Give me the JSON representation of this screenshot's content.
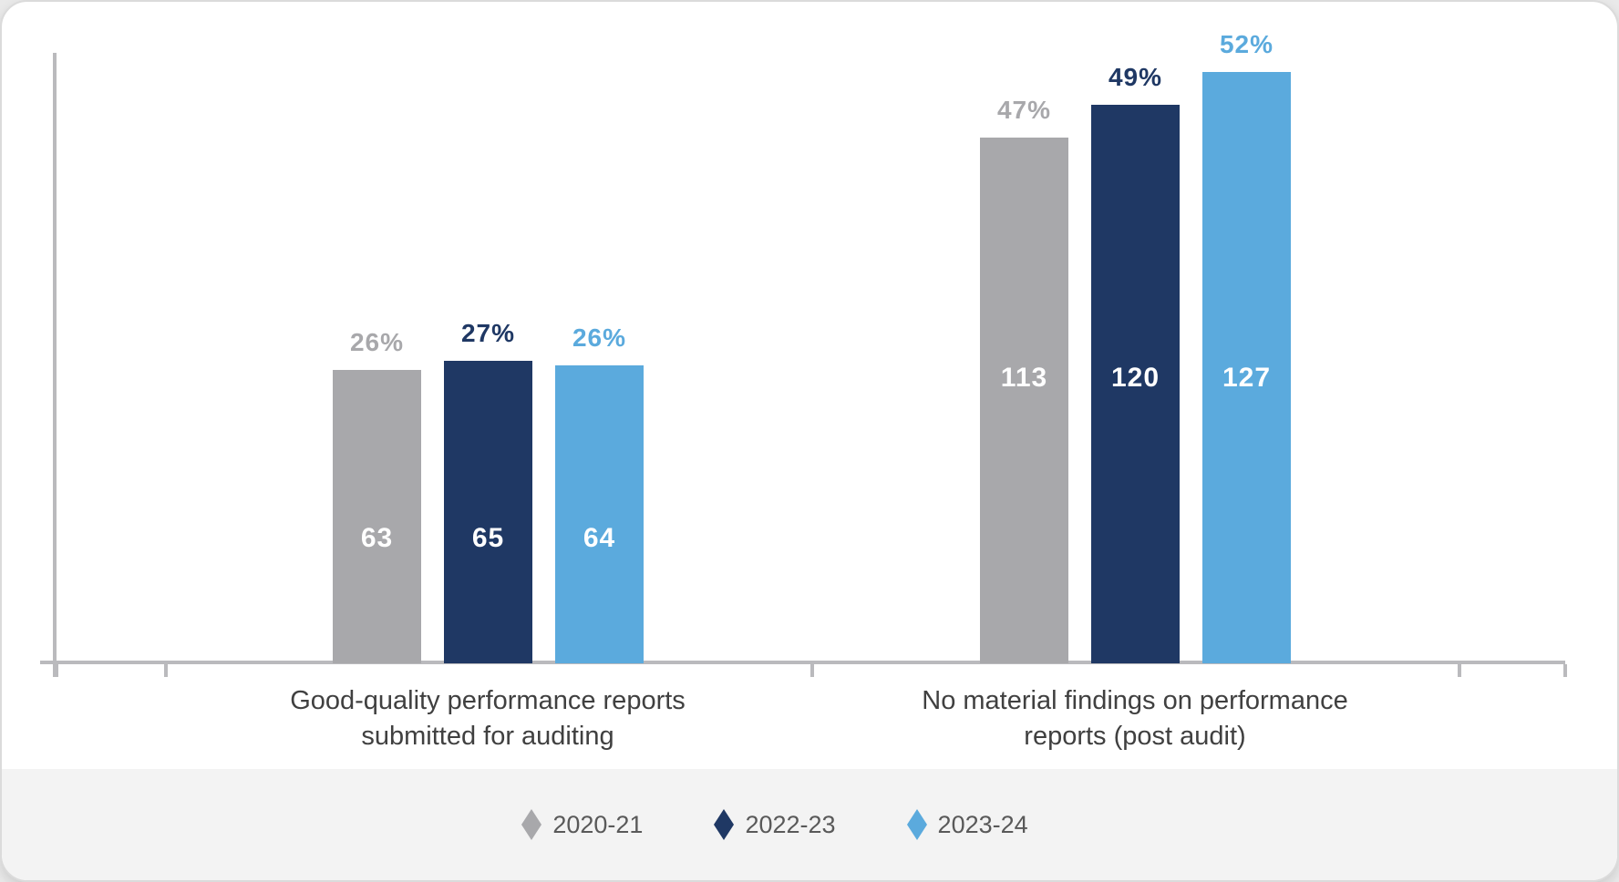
{
  "page": {
    "background": "#E9E9E9",
    "card_background": "#FFFFFF",
    "legend_band_background": "#F3F3F3"
  },
  "chart_data": {
    "type": "bar",
    "title": "",
    "xlabel": "",
    "ylabel": "",
    "grid": false,
    "legend_position": "bottom",
    "ylim": [
      0,
      131
    ],
    "axis_color": "#BABABD",
    "value_label_color": "#FFFFFF",
    "category_label_color": "#404040",
    "legend_text_color": "#595959",
    "categories": [
      "Good-quality performance reports submitted for auditing",
      "No material findings on performance reports (post audit)"
    ],
    "categories_lines": [
      [
        "Good-quality performance reports",
        "submitted for auditing"
      ],
      [
        "No material findings on performance",
        "reports (post audit)"
      ]
    ],
    "series": [
      {
        "name": "2020-21",
        "color": "#A8A8AB",
        "values": [
          63,
          113
        ],
        "percent_labels": [
          "26%",
          "47%"
        ]
      },
      {
        "name": "2022-23",
        "color": "#1F3864",
        "values": [
          65,
          120
        ],
        "percent_labels": [
          "27%",
          "49%"
        ]
      },
      {
        "name": "2023-24",
        "color": "#5BAADD",
        "values": [
          64,
          127
        ],
        "percent_labels": [
          "26%",
          "52%"
        ]
      }
    ]
  }
}
